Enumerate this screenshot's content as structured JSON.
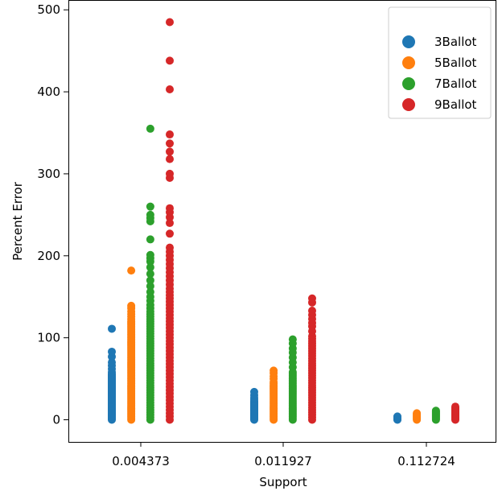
{
  "chart_data": {
    "type": "scatter",
    "xlabel": "Support",
    "ylabel": "Percent Error",
    "categories": [
      "0.004373",
      "0.011927",
      "0.112724"
    ],
    "yticks": [
      0,
      100,
      200,
      300,
      400,
      500
    ],
    "ylim": [
      -27,
      512
    ],
    "grid": false,
    "legend_position": "top-right",
    "series": [
      {
        "name": "3Ballot",
        "color": "#1f77b4",
        "offset": -1,
        "points": [
          {
            "category": "0.004373",
            "values": [
              0,
              1,
              2,
              3,
              4,
              5,
              6,
              7,
              8,
              9,
              10,
              11,
              12,
              13,
              14,
              15,
              16,
              17,
              18,
              19,
              20,
              21,
              22,
              23,
              24,
              25,
              26,
              27,
              28,
              29,
              30,
              31,
              32,
              33,
              34,
              35,
              36,
              37,
              38,
              39,
              40,
              41,
              42,
              43,
              44,
              45,
              46,
              47,
              48,
              49,
              50,
              51,
              52,
              53,
              54,
              55,
              56,
              58,
              62,
              66,
              70,
              77,
              83,
              111
            ]
          },
          {
            "category": "0.011927",
            "values": [
              0,
              1,
              2,
              3,
              4,
              5,
              6,
              7,
              8,
              9,
              10,
              11,
              12,
              13,
              14,
              15,
              16,
              17,
              18,
              19,
              20,
              21,
              22,
              23,
              25,
              27,
              30,
              34
            ]
          },
          {
            "category": "0.112724",
            "values": [
              0,
              0.5,
              1,
              1.5,
              2,
              2.5,
              3,
              3.5,
              4
            ]
          }
        ]
      },
      {
        "name": "5Ballot",
        "color": "#ff7f0e",
        "offset": -0.33,
        "points": [
          {
            "category": "0.004373",
            "values": [
              0,
              2,
              4,
              6,
              8,
              10,
              12,
              14,
              16,
              18,
              20,
              22,
              24,
              26,
              28,
              30,
              32,
              34,
              36,
              38,
              40,
              42,
              44,
              46,
              48,
              50,
              52,
              54,
              56,
              58,
              60,
              62,
              64,
              66,
              68,
              70,
              72,
              74,
              76,
              78,
              80,
              82,
              84,
              86,
              88,
              90,
              92,
              94,
              96,
              98,
              100,
              102,
              104,
              106,
              108,
              110,
              112,
              114,
              116,
              118,
              120,
              123,
              126,
              129,
              132,
              136,
              139,
              182
            ]
          },
          {
            "category": "0.011927",
            "values": [
              0,
              2,
              4,
              6,
              8,
              10,
              12,
              14,
              16,
              18,
              20,
              22,
              24,
              26,
              28,
              30,
              32,
              34,
              36,
              38,
              40,
              42,
              44,
              46,
              50,
              53,
              57,
              60
            ]
          },
          {
            "category": "0.112724",
            "values": [
              0,
              1,
              2,
              3,
              4,
              5,
              6,
              7,
              8
            ]
          }
        ]
      },
      {
        "name": "7Ballot",
        "color": "#2ca02c",
        "offset": 0.33,
        "points": [
          {
            "category": "0.004373",
            "values": [
              0,
              3,
              6,
              9,
              12,
              15,
              18,
              21,
              24,
              27,
              30,
              33,
              36,
              39,
              42,
              45,
              48,
              51,
              54,
              57,
              60,
              63,
              66,
              69,
              72,
              75,
              78,
              81,
              84,
              87,
              90,
              93,
              96,
              99,
              102,
              105,
              108,
              111,
              114,
              117,
              120,
              123,
              126,
              129,
              132,
              136,
              140,
              145,
              150,
              156,
              163,
              170,
              178,
              186,
              193,
              197,
              201,
              220,
              242,
              246,
              250,
              260,
              355
            ]
          },
          {
            "category": "0.011927",
            "values": [
              0,
              2,
              4,
              6,
              8,
              10,
              12,
              14,
              16,
              18,
              20,
              22,
              24,
              26,
              28,
              30,
              32,
              34,
              36,
              38,
              40,
              42,
              44,
              46,
              48,
              50,
              52,
              54,
              56,
              58,
              64,
              70,
              76,
              82,
              87,
              93,
              98
            ]
          },
          {
            "category": "0.112724",
            "values": [
              0,
              1,
              2,
              3,
              4,
              5,
              6,
              7,
              8,
              9,
              10,
              11
            ]
          }
        ]
      },
      {
        "name": "9Ballot",
        "color": "#d62728",
        "offset": 1,
        "points": [
          {
            "category": "0.004373",
            "values": [
              0,
              4,
              8,
              12,
              16,
              20,
              24,
              28,
              32,
              36,
              40,
              44,
              48,
              52,
              56,
              60,
              64,
              68,
              72,
              76,
              80,
              84,
              88,
              92,
              96,
              100,
              104,
              108,
              112,
              116,
              120,
              124,
              128,
              132,
              136,
              140,
              144,
              148,
              152,
              156,
              160,
              165,
              170,
              175,
              180,
              185,
              190,
              195,
              200,
              205,
              210,
              227,
              240,
              247,
              253,
              258,
              295,
              300,
              318,
              327,
              337,
              348,
              403,
              438,
              485
            ]
          },
          {
            "category": "0.011927",
            "values": [
              0,
              3,
              6,
              9,
              12,
              15,
              18,
              21,
              24,
              27,
              30,
              33,
              36,
              39,
              42,
              45,
              48,
              51,
              54,
              57,
              60,
              63,
              66,
              69,
              72,
              75,
              78,
              81,
              84,
              87,
              90,
              93,
              96,
              99,
              102,
              108,
              114,
              118,
              123,
              128,
              133,
              143,
              148
            ]
          },
          {
            "category": "0.112724",
            "values": [
              0,
              1,
              2,
              3,
              4,
              5,
              6,
              7,
              8,
              9,
              10,
              11,
              12,
              13,
              14,
              15,
              16
            ]
          }
        ]
      }
    ]
  }
}
